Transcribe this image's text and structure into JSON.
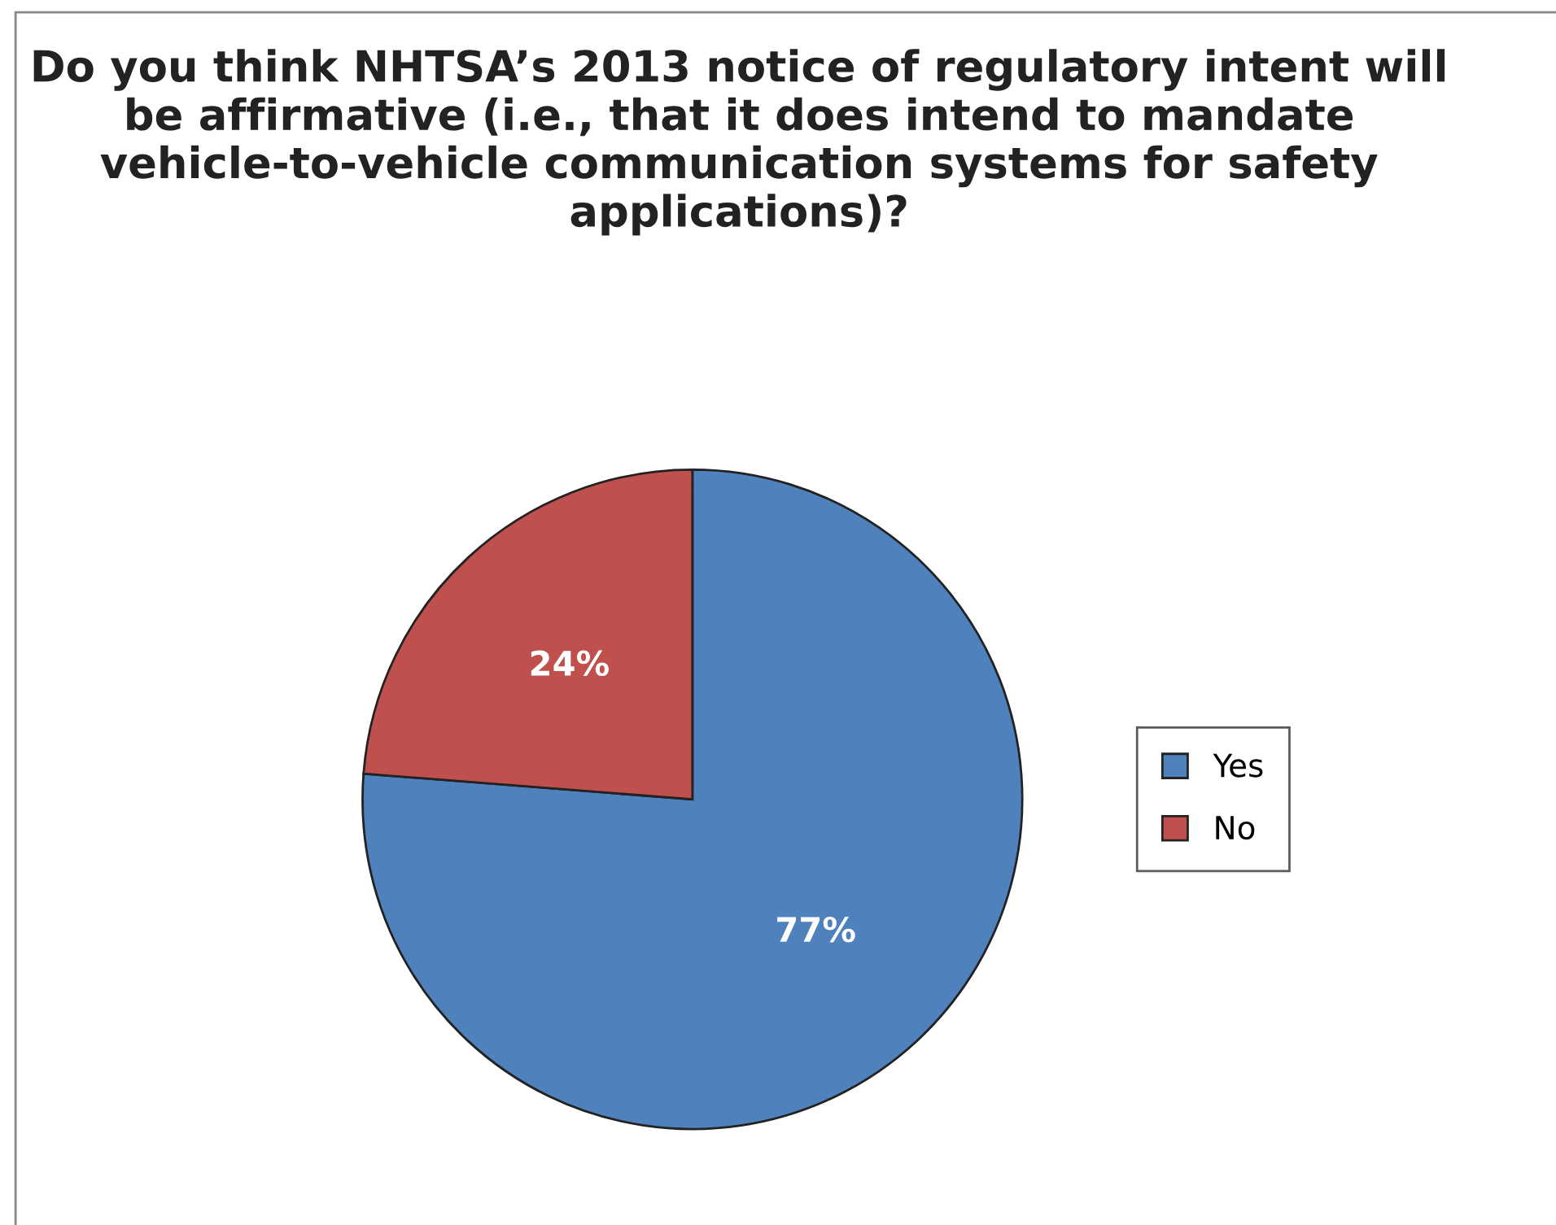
{
  "chart_data": {
    "type": "pie",
    "title": "Do you think NHTSA’s 2013 notice of regulatory intent will be affirmative (i.e., that it does intend to mandate vehicle-to-vehicle communication systems for safety applications)?",
    "categories": [
      "Yes",
      "No"
    ],
    "values": [
      77,
      24
    ],
    "colors": [
      "#4f81bd",
      "#c0504d"
    ],
    "value_labels": [
      "77%",
      "24%"
    ],
    "legend": "right"
  }
}
